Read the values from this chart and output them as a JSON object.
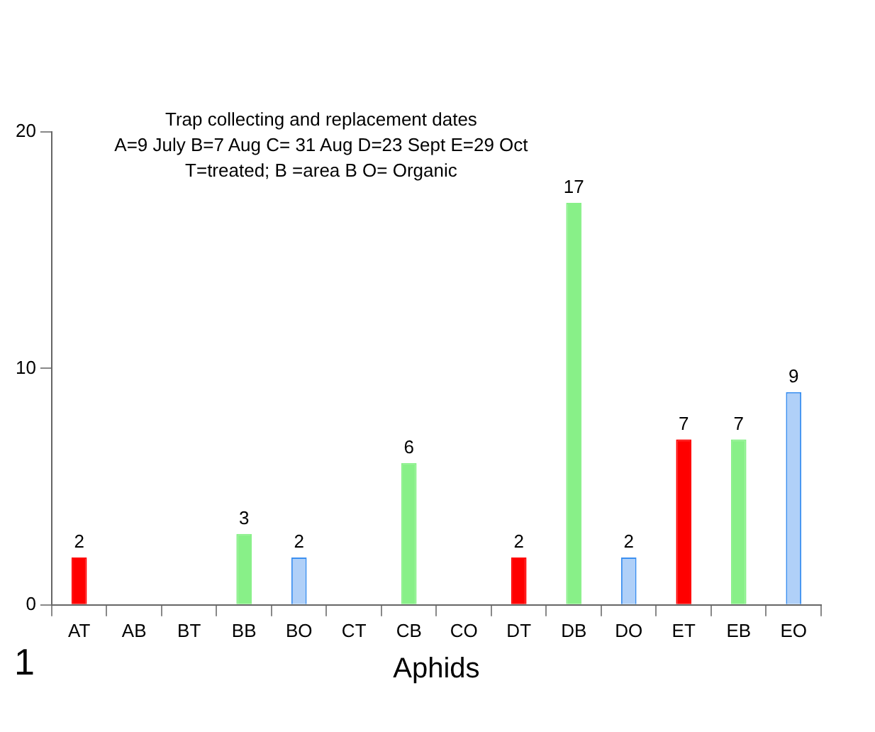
{
  "chart_data": {
    "type": "bar",
    "title": "Trap collecting and replacement dates",
    "annotations": [
      "A=9 July B=7 Aug C= 31 Aug D=23 Sept E=29 Oct",
      "T=treated; B =area B O= Organic",
      "1"
    ],
    "xlabel": "Aphids",
    "categories": [
      "AT",
      "AB",
      "BT",
      "BB",
      "BO",
      "CT",
      "CB",
      "CO",
      "DT",
      "DB",
      "DO",
      "ET",
      "EB",
      "EO"
    ],
    "values": [
      2,
      0,
      0,
      3,
      2,
      0,
      6,
      0,
      2,
      17,
      2,
      7,
      7,
      9
    ],
    "value_labels": [
      "2",
      null,
      null,
      "3",
      "2",
      null,
      "6",
      null,
      "2",
      "17",
      "2",
      "7",
      "7",
      "9"
    ],
    "colors": [
      "#ff0000",
      "#ff0000",
      "#ff0000",
      "#88f088",
      "#b0d0f8",
      "#ff0000",
      "#88f088",
      "#b0d0f8",
      "#ff0000",
      "#88f088",
      "#b0d0f8",
      "#ff0000",
      "#88f088",
      "#b0d0f8"
    ],
    "ylim": [
      0,
      20
    ],
    "yticks": [
      0,
      10,
      20
    ],
    "grid": false,
    "legend": false
  }
}
